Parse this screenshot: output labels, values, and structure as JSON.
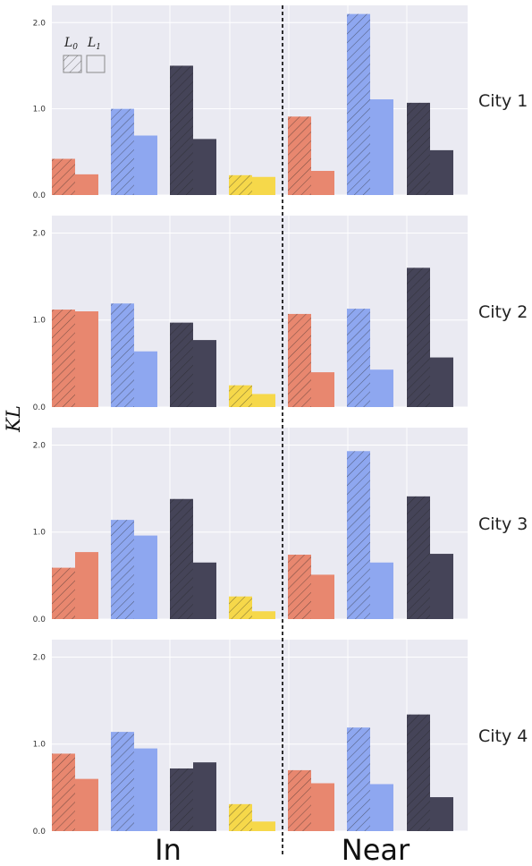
{
  "chart_data": {
    "type": "bar",
    "ylabel": "KL",
    "ylim": [
      0,
      2.2
    ],
    "yticks": [
      "0.0",
      "1.0",
      "2.0"
    ],
    "groups": [
      "In",
      "Near"
    ],
    "legend": {
      "placement": "top-left",
      "entries": [
        "L0",
        "L1"
      ],
      "entry_main": [
        "L",
        "L"
      ],
      "entry_sub": [
        "0",
        "1"
      ],
      "hatched_entry": "L0"
    },
    "series_colors": [
      "#e8876f",
      "#8ea7f0",
      "#454458",
      "#f6d84a"
    ],
    "colors": {
      "background": "#eaeaf2",
      "grid": "#ffffff",
      "divider": "#000000"
    },
    "rows": [
      {
        "label": "City 1",
        "in": {
          "L0": [
            0.42,
            1.0,
            1.5,
            0.23
          ],
          "L1": [
            0.24,
            0.69,
            0.65,
            0.21
          ]
        },
        "near": {
          "L0": [
            0.91,
            2.1,
            1.07
          ],
          "L1": [
            0.28,
            1.11,
            0.52
          ]
        }
      },
      {
        "label": "City 2",
        "in": {
          "L0": [
            1.12,
            1.19,
            0.97,
            0.25
          ],
          "L1": [
            1.1,
            0.64,
            0.77,
            0.15
          ]
        },
        "near": {
          "L0": [
            1.07,
            1.13,
            1.6
          ],
          "L1": [
            0.4,
            0.43,
            0.57
          ]
        }
      },
      {
        "label": "City 3",
        "in": {
          "L0": [
            0.59,
            1.14,
            1.38,
            0.26
          ],
          "L1": [
            0.77,
            0.96,
            0.65,
            0.09
          ]
        },
        "near": {
          "L0": [
            0.74,
            1.93,
            1.41
          ],
          "L1": [
            0.51,
            0.65,
            0.75
          ]
        }
      },
      {
        "label": "City 4",
        "in": {
          "L0": [
            0.89,
            1.14,
            0.72,
            0.31
          ],
          "L1": [
            0.6,
            0.95,
            0.79,
            0.11
          ]
        },
        "near": {
          "L0": [
            0.7,
            1.19,
            1.34
          ],
          "L1": [
            0.55,
            0.54,
            0.39
          ]
        }
      }
    ]
  }
}
